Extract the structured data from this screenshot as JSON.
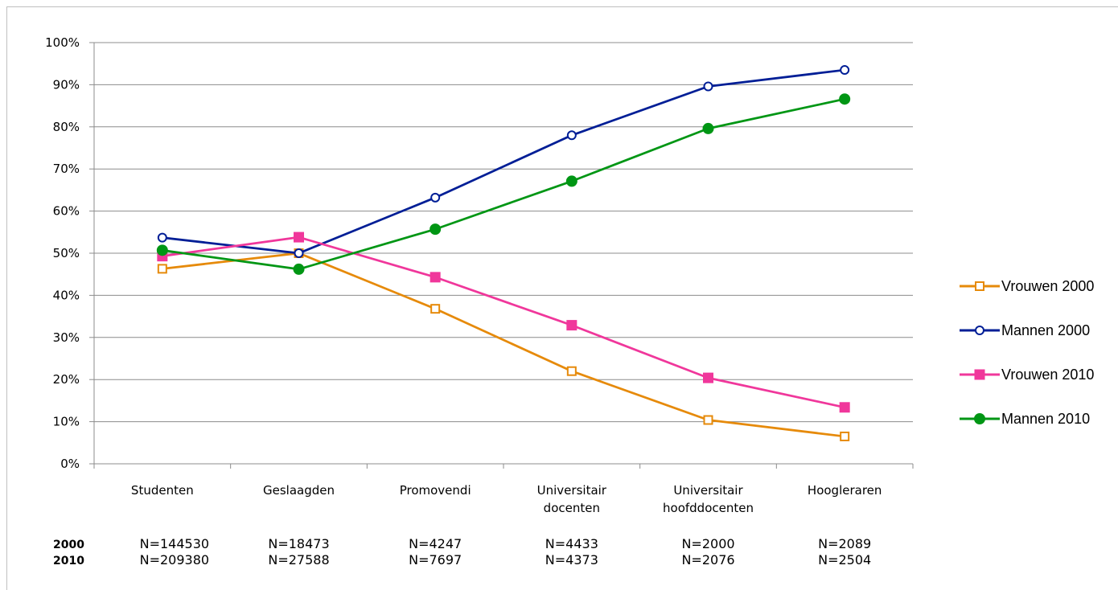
{
  "chart_data": {
    "type": "line",
    "categories": [
      [
        "Studenten"
      ],
      [
        "Geslaagden"
      ],
      [
        "Promovendi"
      ],
      [
        "Universitair",
        "docenten"
      ],
      [
        "Universitair",
        "hoofddocenten"
      ],
      [
        "Hoogleraren"
      ]
    ],
    "y_ticks": [
      "0%",
      "10%",
      "20%",
      "30%",
      "40%",
      "50%",
      "60%",
      "70%",
      "80%",
      "90%",
      "100%"
    ],
    "ylim": [
      0,
      100
    ],
    "grid": true,
    "legend_position": "right",
    "series": [
      {
        "name": "Vrouwen 2000",
        "color": "#E68A0A",
        "marker": "square-open",
        "values": [
          46.3,
          50,
          36.8,
          22,
          10.4,
          6.5
        ]
      },
      {
        "name": "Mannen 2000",
        "color": "#001E96",
        "marker": "circle-open",
        "values": [
          53.7,
          50,
          63.2,
          78,
          89.6,
          93.5
        ]
      },
      {
        "name": "Vrouwen 2010",
        "color": "#F0379B",
        "marker": "square-filled",
        "values": [
          49.3,
          53.8,
          44.3,
          32.9,
          20.4,
          13.4
        ]
      },
      {
        "name": "Mannen 2010",
        "color": "#009614",
        "marker": "circle-filled",
        "values": [
          50.7,
          46.2,
          55.7,
          67.1,
          79.6,
          86.6
        ]
      }
    ],
    "sample_sizes": {
      "rows": [
        {
          "year": "2000",
          "values": [
            "N=144530",
            "N=18473",
            "N=4247",
            "N=4433",
            "N=2000",
            "N=2089"
          ]
        },
        {
          "year": "2010",
          "values": [
            "N=209380",
            "N=27588",
            "N=7697",
            "N=4373",
            "N=2076",
            "N=2504"
          ]
        }
      ]
    }
  }
}
